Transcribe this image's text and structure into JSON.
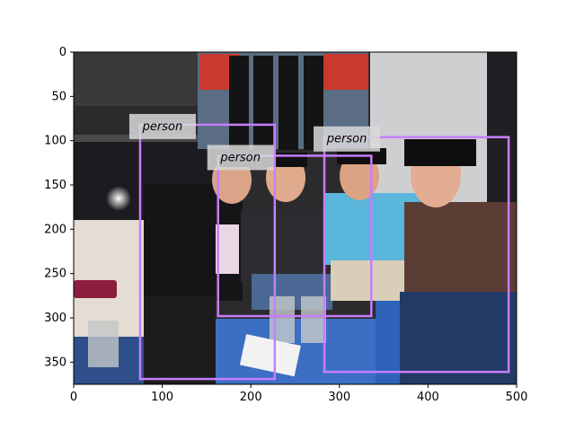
{
  "image": {
    "description_free": true,
    "width_units": 500,
    "height_units": 375
  },
  "axes": {
    "x_ticks": [
      0,
      100,
      200,
      300,
      400,
      500
    ],
    "y_ticks": [
      0,
      50,
      100,
      150,
      200,
      250,
      300,
      350
    ],
    "xlim": [
      0,
      500
    ],
    "ylim": [
      375,
      0
    ]
  },
  "detections": [
    {
      "label": "person",
      "x0": 75,
      "y0": 82,
      "x1": 227,
      "y1": 369,
      "color": "#c77dff"
    },
    {
      "label": "person",
      "x0": 163,
      "y0": 117,
      "x1": 336,
      "y1": 298,
      "color": "#c77dff"
    },
    {
      "label": "person",
      "x0": 283,
      "y0": 96,
      "x1": 491,
      "y1": 361,
      "color": "#c77dff"
    }
  ],
  "colors": {
    "box": "#c77dff",
    "label_bg": "#d9d9d9"
  }
}
